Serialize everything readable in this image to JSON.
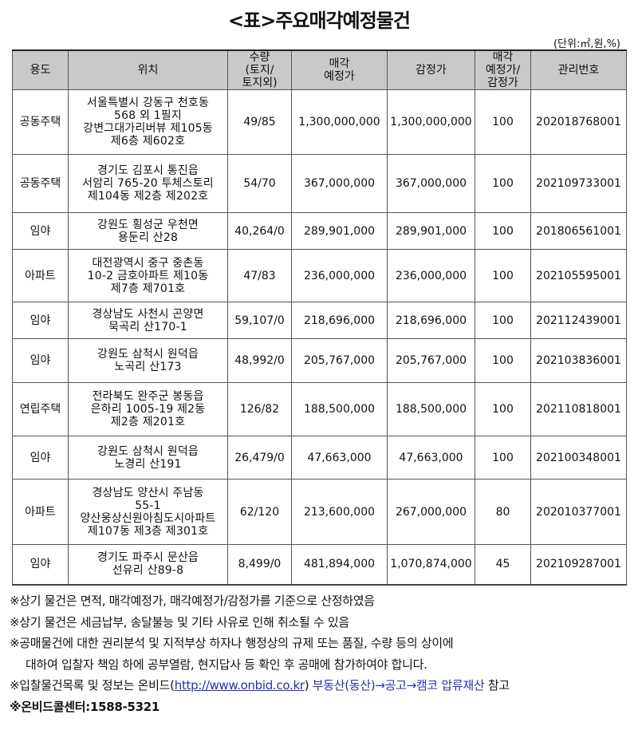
{
  "title": "<표>주요매각예정물건",
  "unit": "(단위:㎡,원,%)",
  "table": {
    "headers": [
      "용도",
      "위치",
      "수량\n(토지/\n토지외)",
      "매각\n예정가",
      "감정가",
      "매각\n예정가/\n감정가",
      "관리번호"
    ],
    "rows": [
      {
        "use": "공동주택",
        "location": "서울특별시 강동구 천호동\n568 외 1필지\n강변그대가리버뷰 제105동\n제6층 제602호",
        "qty": "49/85",
        "sale_price": "1,300,000,000",
        "appraisal": "1,300,000,000",
        "ratio": "100",
        "id": "202018768001"
      },
      {
        "use": "공동주택",
        "location": "경기도 김포시 통진읍\n서암리 765-20 투체스토리\n제104동 제2층 제202호",
        "qty": "54/70",
        "sale_price": "367,000,000",
        "appraisal": "367,000,000",
        "ratio": "100",
        "id": "202109733001"
      },
      {
        "use": "임야",
        "location": "강원도 횡성군 우천면\n용둔리 산28",
        "qty": "40,264/0",
        "sale_price": "289,901,000",
        "appraisal": "289,901,000",
        "ratio": "100",
        "id": "201806561001"
      },
      {
        "use": "아파트",
        "location": "대전광역시 중구 중촌동\n10-2 금호아파트 제10동\n제7층 제701호",
        "qty": "47/83",
        "sale_price": "236,000,000",
        "appraisal": "236,000,000",
        "ratio": "100",
        "id": "202105595001"
      },
      {
        "use": "임야",
        "location": "경상남도 사천시 곤양면\n묵곡리 산170-1",
        "qty": "59,107/0",
        "sale_price": "218,696,000",
        "appraisal": "218,696,000",
        "ratio": "100",
        "id": "202112439001"
      },
      {
        "use": "임야",
        "location": "강원도 삼척시 원덕읍\n노곡리 산173",
        "qty": "48,992/0",
        "sale_price": "205,767,000",
        "appraisal": "205,767,000",
        "ratio": "100",
        "id": "202103836001"
      },
      {
        "use": "연립주택",
        "location": "전라북도 완주군 봉동읍\n은하리 1005-19 제2동\n제2층 제201호",
        "qty": "126/82",
        "sale_price": "188,500,000",
        "appraisal": "188,500,000",
        "ratio": "100",
        "id": "202110818001"
      },
      {
        "use": "임야",
        "location": "강원도 삼척시 원덕읍\n노경리 산191",
        "qty": "26,479/0",
        "sale_price": "47,663,000",
        "appraisal": "47,663,000",
        "ratio": "100",
        "id": "202100348001"
      },
      {
        "use": "아파트",
        "location": "경상남도 양산시 주남동\n55-1\n양산웅상신원아침도시아파트\n제107동 제3층 제301호",
        "qty": "62/120",
        "sale_price": "213,600,000",
        "appraisal": "267,000,000",
        "ratio": "80",
        "id": "202010377001"
      },
      {
        "use": "임야",
        "location": "경기도 파주시 문산읍\n선유리 산89-8",
        "qty": "8,499/0",
        "sale_price": "481,894,000",
        "appraisal": "1,070,874,000",
        "ratio": "45",
        "id": "202109287001"
      }
    ]
  },
  "notes": {
    "n1": "※상기 물건은 면적, 매각예정가, 매각예정가/감정가를 기준으로 산정하였음",
    "n2": "※상기 물건은 세금납부, 송달불능 및 기타 사유로 인해 취소될 수 있음",
    "n3a": "※공매물건에 대한 권리분석 및 지적부상 하자나 행정상의 규제 또는 품질, 수량 등의 상이에",
    "n3b": "대하여 입찰자 책임 하에 공부열람, 현지답사 등 확인 후 공매에 참가하여야 합니다.",
    "n4_prefix": "※입찰물건목록 및 정보는 온비드(",
    "n4_url": "http://www.onbid.co.kr",
    "n4_close": ")",
    "n4_path": "부동산(동산)→공고→캠코 압류재산",
    "n4_suffix": "참고",
    "n5": "※온비드콜센터:1588-5321"
  },
  "colors": {
    "header_bg": "#c9c9c9",
    "link": "#2b2fa8"
  }
}
